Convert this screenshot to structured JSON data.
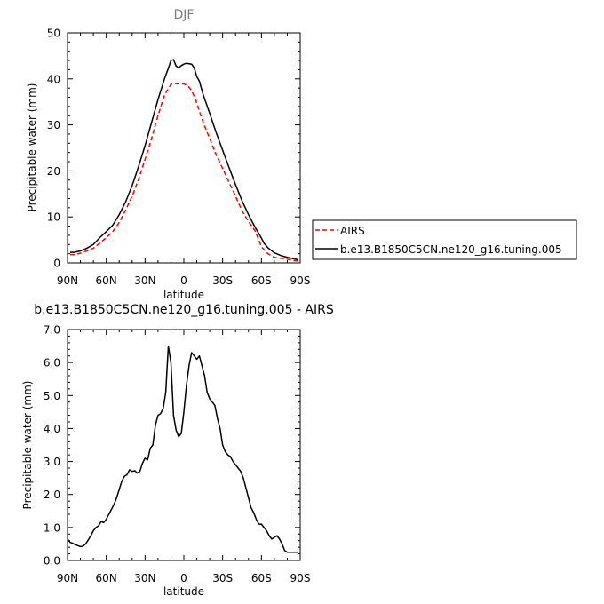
{
  "chart_data": [
    {
      "type": "line",
      "title": "DJF",
      "xlabel": "latitude",
      "ylabel": "Precipitable water (mm)",
      "xlim": [
        90,
        -90
      ],
      "ylim": [
        0,
        50
      ],
      "xticks": [
        90,
        60,
        30,
        0,
        -30,
        -60,
        -90
      ],
      "xtick_labels": [
        "90N",
        "60N",
        "30N",
        "0",
        "30S",
        "60S",
        "90S"
      ],
      "yticks": [
        0,
        10,
        20,
        30,
        40,
        50
      ],
      "ytick_labels": [
        "0",
        "10",
        "20",
        "30",
        "40",
        "50"
      ],
      "grid": false,
      "legend": "right",
      "series": [
        {
          "name": "AIRS",
          "color": "#ff0000",
          "dash": "dashed",
          "x": [
            88,
            85,
            80,
            75,
            70,
            65,
            60,
            55,
            50,
            45,
            40,
            35,
            30,
            25,
            20,
            15,
            10,
            7,
            5,
            3,
            0,
            -3,
            -6,
            -9,
            -12,
            -15,
            -20,
            -25,
            -30,
            -35,
            -40,
            -45,
            -50,
            -55,
            -60,
            -65,
            -70,
            -75,
            -80,
            -85,
            -88
          ],
          "values": [
            1.8,
            1.8,
            2.1,
            2.6,
            3.2,
            4.3,
            5.5,
            6.8,
            8.8,
            11.5,
            14.5,
            18.2,
            22.5,
            27.0,
            32.0,
            36.5,
            38.8,
            39.0,
            38.9,
            38.9,
            38.9,
            38.5,
            37.5,
            35.5,
            33.0,
            30.5,
            27.0,
            23.5,
            20.5,
            17.5,
            14.5,
            11.3,
            9.0,
            7.0,
            3.5,
            2.0,
            1.2,
            1.0,
            0.8,
            0.5,
            0.4
          ]
        },
        {
          "name": "b.e13.B1850C5CN.ne120_g16.tuning.005",
          "color": "#000000",
          "dash": "solid",
          "x": [
            88,
            85,
            80,
            75,
            70,
            65,
            60,
            55,
            50,
            45,
            40,
            35,
            30,
            25,
            20,
            15,
            12,
            10,
            8,
            6,
            4,
            2,
            0,
            -2,
            -4,
            -6,
            -8,
            -10,
            -12,
            -15,
            -20,
            -25,
            -30,
            -35,
            -40,
            -45,
            -50,
            -55,
            -60,
            -62,
            -65,
            -70,
            -75,
            -80,
            -85,
            -88
          ],
          "values": [
            2.3,
            2.3,
            2.6,
            3.2,
            4.0,
            5.5,
            6.8,
            8.2,
            10.5,
            13.3,
            16.8,
            21.0,
            25.5,
            30.5,
            35.5,
            40.0,
            42.3,
            44.0,
            44.2,
            42.8,
            42.4,
            42.9,
            43.2,
            43.4,
            43.3,
            43.2,
            42.4,
            40.5,
            39.5,
            36.5,
            32.5,
            28.3,
            24.5,
            20.7,
            17.0,
            13.5,
            10.5,
            7.8,
            5.4,
            4.3,
            3.3,
            2.2,
            1.6,
            1.2,
            0.9,
            0.7
          ]
        }
      ]
    },
    {
      "type": "line",
      "title": "b.e13.B1850C5CN.ne120_g16.tuning.005 - AIRS",
      "xlabel": "latitude",
      "ylabel": "Precipitable water (mm)",
      "xlim": [
        90,
        -90
      ],
      "ylim": [
        0,
        7
      ],
      "xticks": [
        90,
        60,
        30,
        0,
        -30,
        -60,
        -90
      ],
      "xtick_labels": [
        "90N",
        "60N",
        "30N",
        "0",
        "30S",
        "60S",
        "90S"
      ],
      "yticks": [
        0,
        1,
        2,
        3,
        4,
        5,
        6,
        7
      ],
      "ytick_labels": [
        "0.0",
        "1.0",
        "2.0",
        "3.0",
        "4.0",
        "5.0",
        "6.0",
        "7.0"
      ],
      "grid": false,
      "series": [
        {
          "color": "#000000",
          "dash": "solid",
          "x": [
            90,
            88,
            86,
            84,
            82,
            80,
            78,
            76,
            74,
            72,
            70,
            68,
            66,
            64,
            62,
            60,
            58,
            56,
            54,
            52,
            50,
            48,
            46,
            44,
            42,
            40,
            38,
            36,
            34,
            32,
            30,
            28,
            26,
            24,
            22,
            20,
            18,
            16,
            14,
            12,
            10,
            8,
            6,
            4,
            2,
            0,
            -2,
            -4,
            -6,
            -8,
            -10,
            -12,
            -14,
            -16,
            -18,
            -20,
            -22,
            -24,
            -26,
            -28,
            -30,
            -32,
            -34,
            -36,
            -38,
            -40,
            -42,
            -44,
            -46,
            -48,
            -50,
            -52,
            -54,
            -56,
            -58,
            -60,
            -62,
            -64,
            -66,
            -68,
            -70,
            -72,
            -74,
            -76,
            -78,
            -80,
            -82,
            -84,
            -86,
            -88
          ],
          "values": [
            0.65,
            0.55,
            0.52,
            0.48,
            0.45,
            0.42,
            0.43,
            0.5,
            0.62,
            0.75,
            0.9,
            1.0,
            1.05,
            1.18,
            1.15,
            1.25,
            1.4,
            1.55,
            1.7,
            1.9,
            2.15,
            2.4,
            2.55,
            2.6,
            2.75,
            2.7,
            2.72,
            2.65,
            2.7,
            2.95,
            3.1,
            3.05,
            3.4,
            3.5,
            4.1,
            4.4,
            4.45,
            4.6,
            5.1,
            6.5,
            6.0,
            4.4,
            3.95,
            3.75,
            3.85,
            4.5,
            5.3,
            5.9,
            6.3,
            6.2,
            6.1,
            6.2,
            5.9,
            5.6,
            5.1,
            4.9,
            4.8,
            4.7,
            4.3,
            4.0,
            3.5,
            3.3,
            3.2,
            3.15,
            3.0,
            2.9,
            2.8,
            2.7,
            2.5,
            2.2,
            1.9,
            1.6,
            1.45,
            1.25,
            1.1,
            1.1,
            1.0,
            0.9,
            0.75,
            0.65,
            0.7,
            0.75,
            0.65,
            0.5,
            0.3,
            0.25,
            0.25,
            0.25,
            0.25,
            0.25
          ]
        }
      ]
    }
  ]
}
